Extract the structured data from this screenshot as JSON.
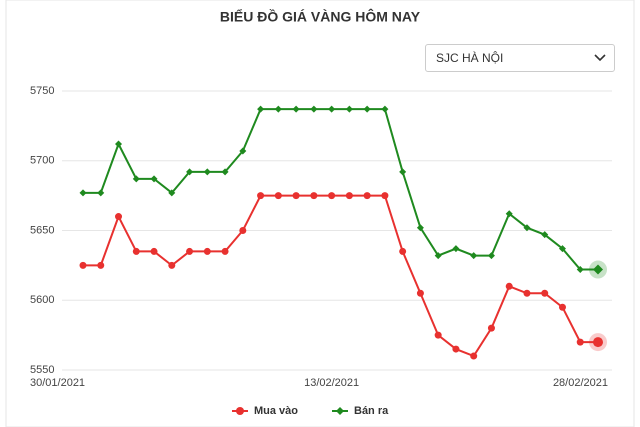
{
  "dropdown": {
    "selected": "SJC HÀ NỘI"
  },
  "chart_data": {
    "type": "line",
    "title": "BIỂU ĐỒ GIÁ VÀNG HÔM NAY",
    "categories": [
      "30/01/2021",
      null,
      null,
      null,
      null,
      null,
      null,
      null,
      null,
      null,
      null,
      null,
      null,
      null,
      "13/02/2021",
      null,
      null,
      null,
      null,
      null,
      null,
      null,
      null,
      null,
      null,
      null,
      null,
      null,
      null,
      "28/02/2021"
    ],
    "series": [
      {
        "name": "Mua vào",
        "color": "#e8312f",
        "values": [
          5625,
          5625,
          5660,
          5635,
          5635,
          5625,
          5635,
          5635,
          5635,
          5650,
          5675,
          5675,
          5675,
          5675,
          5675,
          5675,
          5675,
          5675,
          5635,
          5605,
          5575,
          5565,
          5560,
          5580,
          5610,
          5605,
          5605,
          5595,
          5570,
          5570
        ]
      },
      {
        "name": "Bán ra",
        "color": "#1f8a1f",
        "values": [
          5677,
          5677,
          5712,
          5687,
          5687,
          5677,
          5692,
          5692,
          5692,
          5707,
          5737,
          5737,
          5737,
          5737,
          5737,
          5737,
          5737,
          5737,
          5692,
          5652,
          5632,
          5637,
          5632,
          5632,
          5662,
          5652,
          5647,
          5637,
          5622,
          5622
        ]
      }
    ],
    "ylim": [
      5550,
      5750
    ],
    "yticks": [
      5550,
      5600,
      5650,
      5700,
      5750
    ],
    "grid": true,
    "legend": "bottom"
  }
}
